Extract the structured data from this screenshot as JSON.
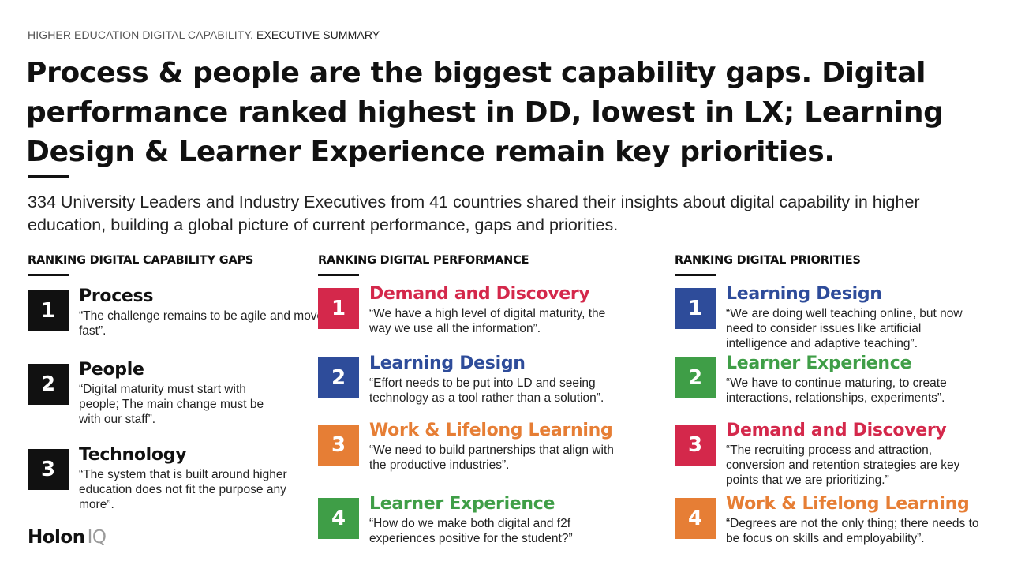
{
  "eyebrow": {
    "part1": "HIGHER EDUCATION DIGITAL CAPABILITY.",
    "part2": "EXECUTIVE SUMMARY"
  },
  "headline": "Process & people are the biggest capability gaps. Digital performance ranked highest in DD, lowest in LX; Learning Design & Learner Experience remain key priorities.",
  "intro": "334 University Leaders and Industry Executives from 41 countries shared their insights about digital capability in higher education, building a global picture of current performance, gaps and priorities.",
  "colors": {
    "black": "#111111",
    "red": "#d4284b",
    "blue": "#2e4c9a",
    "green": "#3f9e47",
    "orange": "#e67e35"
  },
  "columns": [
    {
      "title": "RANKING DIGITAL CAPABILITY GAPS",
      "items": [
        {
          "rank": "1",
          "title": "Process",
          "quote": "“The challenge remains to be agile and move fast”.",
          "color": "#111111",
          "title_color": "#111111"
        },
        {
          "rank": "2",
          "title": "People",
          "quote": "“Digital maturity must start with people; The main change must be with our staff”.",
          "color": "#111111",
          "title_color": "#111111"
        },
        {
          "rank": "3",
          "title": "Technology",
          "quote": "“The system that is built around higher education does not fit the purpose any more”.",
          "color": "#111111",
          "title_color": "#111111"
        }
      ]
    },
    {
      "title": "RANKING DIGITAL PERFORMANCE",
      "items": [
        {
          "rank": "1",
          "title": "Demand and Discovery",
          "quote": "“We have a high level of digital maturity, the way we use all the information”.",
          "color": "#d4284b",
          "title_color": "#d4284b"
        },
        {
          "rank": "2",
          "title": "Learning Design",
          "quote": "“Effort needs to be put into LD and seeing technology as a tool rather than a solution”.",
          "color": "#2e4c9a",
          "title_color": "#2e4c9a"
        },
        {
          "rank": "3",
          "title": "Work & Lifelong Learning",
          "quote": "“We need to build partnerships that align with the productive industries”.",
          "color": "#e67e35",
          "title_color": "#e67e35"
        },
        {
          "rank": "4",
          "title": "Learner Experience",
          "quote": "“How do we make both digital and f2f experiences positive for the student?”",
          "color": "#3f9e47",
          "title_color": "#3f9e47"
        }
      ]
    },
    {
      "title": "RANKING DIGITAL PRIORITIES",
      "items": [
        {
          "rank": "1",
          "title": "Learning Design",
          "quote": "“We are doing well teaching online, but now need to consider issues like artificial intelligence and adaptive teaching”.",
          "color": "#2e4c9a",
          "title_color": "#2e4c9a"
        },
        {
          "rank": "2",
          "title": "Learner Experience",
          "quote": "“We have to continue maturing, to create interactions, relationships, experiments”.",
          "color": "#3f9e47",
          "title_color": "#3f9e47"
        },
        {
          "rank": "3",
          "title": "Demand and Discovery",
          "quote": "“The recruiting process and attraction, conversion and retention strategies are key points that we are prioritizing.”",
          "color": "#d4284b",
          "title_color": "#d4284b"
        },
        {
          "rank": "4",
          "title": "Work & Lifelong Learning",
          "quote": "“Degrees are not the only thing; there needs to be focus on skills and employability”.",
          "color": "#e67e35",
          "title_color": "#e67e35"
        }
      ]
    }
  ],
  "logo": {
    "part1": "Holon",
    "part2": "IQ"
  }
}
